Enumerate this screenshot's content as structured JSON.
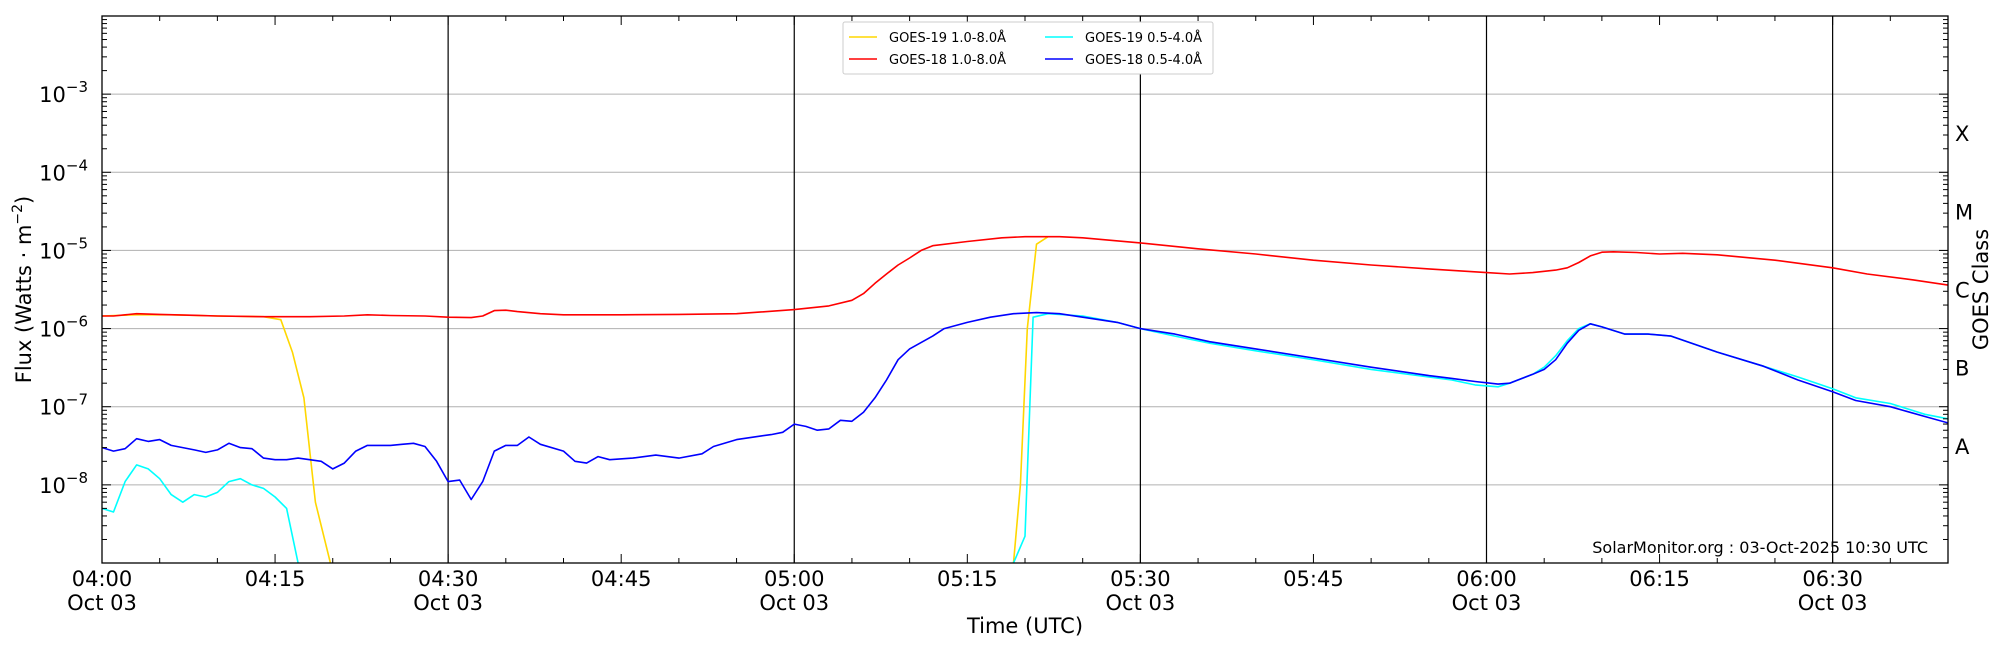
{
  "chart_data": {
    "type": "line",
    "xlabel": "Time (UTC)",
    "ylabel": "Flux (Watts · m",
    "ylabel_sup": "−2",
    "ylabel_close": ")",
    "right_label": "GOES Class",
    "x_range_min": [
      0,
      160
    ],
    "x_ticks": [
      {
        "min": 0,
        "time": "04:00",
        "date": "Oct 03"
      },
      {
        "min": 15,
        "time": "04:15",
        "date": ""
      },
      {
        "min": 30,
        "time": "04:30",
        "date": "Oct 03"
      },
      {
        "min": 45,
        "time": "04:45",
        "date": ""
      },
      {
        "min": 60,
        "time": "05:00",
        "date": "Oct 03"
      },
      {
        "min": 75,
        "time": "05:15",
        "date": ""
      },
      {
        "min": 90,
        "time": "05:30",
        "date": "Oct 03"
      },
      {
        "min": 105,
        "time": "05:45",
        "date": ""
      },
      {
        "min": 120,
        "time": "06:00",
        "date": "Oct 03"
      },
      {
        "min": 135,
        "time": "06:15",
        "date": ""
      },
      {
        "min": 150,
        "time": "06:30",
        "date": "Oct 03"
      }
    ],
    "vertical_lines_min": [
      30,
      60,
      90,
      120,
      150
    ],
    "y_scale": "log",
    "y_range_log10": [
      -9,
      -2
    ],
    "y_ticks": [
      {
        "exp": -8,
        "base": "10",
        "sup": "−8"
      },
      {
        "exp": -7,
        "base": "10",
        "sup": "−7"
      },
      {
        "exp": -6,
        "base": "10",
        "sup": "−6"
      },
      {
        "exp": -5,
        "base": "10",
        "sup": "−5"
      },
      {
        "exp": -4,
        "base": "10",
        "sup": "−4"
      },
      {
        "exp": -3,
        "base": "10",
        "sup": "−3"
      }
    ],
    "goes_classes": [
      {
        "label": "A",
        "log10": -7.5
      },
      {
        "label": "B",
        "log10": -6.5
      },
      {
        "label": "C",
        "log10": -5.5
      },
      {
        "label": "M",
        "log10": -4.5
      },
      {
        "label": "X",
        "log10": -3.5
      }
    ],
    "legend": [
      {
        "name": "GOES-19 1.0-8.0Å",
        "color": "#ffd700"
      },
      {
        "name": "GOES-19 0.5-4.0Å",
        "color": "#00ffff"
      },
      {
        "name": "GOES-18 1.0-8.0Å",
        "color": "#ff0000"
      },
      {
        "name": "GOES-18 0.5-4.0Å",
        "color": "#0000ff"
      }
    ],
    "credit": "SolarMonitor.org : 03-Oct-2025 10:30 UTC",
    "series": [
      {
        "name": "GOES-19 1.0-8.0Å",
        "color": "#ffd700",
        "points": [
          [
            0,
            1.45e-06
          ],
          [
            3,
            1.5e-06
          ],
          [
            6,
            1.5e-06
          ],
          [
            10,
            1.45e-06
          ],
          [
            14,
            1.42e-06
          ],
          [
            15.5,
            1.3e-06
          ],
          [
            16.5,
            5e-07
          ],
          [
            17.5,
            1.3e-07
          ],
          [
            18.5,
            6e-09
          ],
          [
            19.8,
            1e-09
          ]
        ]
      },
      {
        "name": "GOES-19 1.0-8.0Å",
        "color": "#ffd700",
        "points": [
          [
            79,
            1e-09
          ],
          [
            79.6,
            1e-08
          ],
          [
            80.2,
            1e-06
          ],
          [
            81,
            1.2e-05
          ],
          [
            82,
            1.5e-05
          ]
        ]
      },
      {
        "name": "GOES-19 0.5-4.0Å",
        "color": "#00ffff",
        "points": [
          [
            0,
            5e-09
          ],
          [
            1,
            4.5e-09
          ],
          [
            2,
            1.1e-08
          ],
          [
            3,
            1.8e-08
          ],
          [
            4,
            1.6e-08
          ],
          [
            5,
            1.2e-08
          ],
          [
            6,
            7.5e-09
          ],
          [
            7,
            6e-09
          ],
          [
            8,
            7.5e-09
          ],
          [
            9,
            7e-09
          ],
          [
            10,
            8e-09
          ],
          [
            11,
            1.1e-08
          ],
          [
            12,
            1.2e-08
          ],
          [
            13,
            1e-08
          ],
          [
            14,
            9e-09
          ],
          [
            15,
            7e-09
          ],
          [
            16,
            5e-09
          ],
          [
            17,
            1e-09
          ]
        ]
      },
      {
        "name": "GOES-19 0.5-4.0Å",
        "color": "#00ffff",
        "points": [
          [
            79,
            1e-09
          ],
          [
            80,
            2.2e-09
          ],
          [
            80.7,
            1.4e-06
          ],
          [
            82,
            1.55e-06
          ],
          [
            85,
            1.45e-06
          ],
          [
            88,
            1.2e-06
          ],
          [
            90,
            1e-06
          ],
          [
            93,
            8e-07
          ],
          [
            96,
            6.5e-07
          ],
          [
            100,
            5.2e-07
          ],
          [
            105,
            4e-07
          ],
          [
            110,
            3e-07
          ],
          [
            115,
            2.4e-07
          ],
          [
            117,
            2.2e-07
          ],
          [
            119,
            1.9e-07
          ],
          [
            121,
            1.8e-07
          ],
          [
            122,
            2e-07
          ],
          [
            124,
            2.6e-07
          ],
          [
            125,
            3.2e-07
          ],
          [
            126,
            4.5e-07
          ],
          [
            127,
            7e-07
          ],
          [
            128,
            1e-06
          ],
          [
            129,
            1.15e-06
          ],
          [
            130,
            1.05e-06
          ],
          [
            132,
            8.5e-07
          ],
          [
            134,
            8.5e-07
          ],
          [
            136,
            8e-07
          ],
          [
            140,
            5e-07
          ],
          [
            144,
            3.3e-07
          ],
          [
            147,
            2.4e-07
          ],
          [
            150,
            1.7e-07
          ],
          [
            152,
            1.3e-07
          ],
          [
            155,
            1.1e-07
          ],
          [
            158,
            8e-08
          ],
          [
            160,
            7e-08
          ]
        ]
      },
      {
        "name": "GOES-18 1.0-8.0Å",
        "color": "#ff0000",
        "points": [
          [
            0,
            1.45e-06
          ],
          [
            1,
            1.45e-06
          ],
          [
            2,
            1.5e-06
          ],
          [
            3,
            1.55e-06
          ],
          [
            5,
            1.52e-06
          ],
          [
            8,
            1.48e-06
          ],
          [
            10,
            1.45e-06
          ],
          [
            14,
            1.42e-06
          ],
          [
            18,
            1.42e-06
          ],
          [
            21,
            1.45e-06
          ],
          [
            23,
            1.5e-06
          ],
          [
            25,
            1.47e-06
          ],
          [
            28,
            1.45e-06
          ],
          [
            30,
            1.4e-06
          ],
          [
            32,
            1.38e-06
          ],
          [
            33,
            1.45e-06
          ],
          [
            34,
            1.7e-06
          ],
          [
            35,
            1.72e-06
          ],
          [
            36,
            1.65e-06
          ],
          [
            38,
            1.55e-06
          ],
          [
            40,
            1.5e-06
          ],
          [
            45,
            1.5e-06
          ],
          [
            50,
            1.52e-06
          ],
          [
            55,
            1.55e-06
          ],
          [
            60,
            1.75e-06
          ],
          [
            63,
            1.95e-06
          ],
          [
            65,
            2.3e-06
          ],
          [
            66,
            2.8e-06
          ],
          [
            67,
            3.8e-06
          ],
          [
            68,
            5e-06
          ],
          [
            69,
            6.5e-06
          ],
          [
            70,
            8e-06
          ],
          [
            71,
            1e-05
          ],
          [
            72,
            1.15e-05
          ],
          [
            75,
            1.3e-05
          ],
          [
            78,
            1.45e-05
          ],
          [
            80,
            1.5e-05
          ],
          [
            83,
            1.5e-05
          ],
          [
            85,
            1.45e-05
          ],
          [
            90,
            1.25e-05
          ],
          [
            95,
            1.05e-05
          ],
          [
            100,
            9e-06
          ],
          [
            105,
            7.5e-06
          ],
          [
            110,
            6.5e-06
          ],
          [
            115,
            5.8e-06
          ],
          [
            120,
            5.2e-06
          ],
          [
            122,
            5e-06
          ],
          [
            124,
            5.2e-06
          ],
          [
            126,
            5.6e-06
          ],
          [
            127,
            6e-06
          ],
          [
            128,
            7e-06
          ],
          [
            129,
            8.5e-06
          ],
          [
            130,
            9.5e-06
          ],
          [
            131,
            9.6e-06
          ],
          [
            133,
            9.4e-06
          ],
          [
            135,
            9e-06
          ],
          [
            137,
            9.2e-06
          ],
          [
            140,
            8.8e-06
          ],
          [
            145,
            7.5e-06
          ],
          [
            150,
            6e-06
          ],
          [
            153,
            5e-06
          ],
          [
            157,
            4.2e-06
          ],
          [
            160,
            3.6e-06
          ]
        ]
      },
      {
        "name": "GOES-18 0.5-4.0Å",
        "color": "#0000ff",
        "points": [
          [
            0,
            3e-08
          ],
          [
            1,
            2.7e-08
          ],
          [
            2,
            2.9e-08
          ],
          [
            3,
            3.9e-08
          ],
          [
            4,
            3.6e-08
          ],
          [
            5,
            3.8e-08
          ],
          [
            6,
            3.2e-08
          ],
          [
            8,
            2.8e-08
          ],
          [
            9,
            2.6e-08
          ],
          [
            10,
            2.8e-08
          ],
          [
            11,
            3.4e-08
          ],
          [
            12,
            3e-08
          ],
          [
            13,
            2.9e-08
          ],
          [
            14,
            2.2e-08
          ],
          [
            15,
            2.1e-08
          ],
          [
            16,
            2.1e-08
          ],
          [
            17,
            2.2e-08
          ],
          [
            18,
            2.1e-08
          ],
          [
            19,
            2e-08
          ],
          [
            20,
            1.6e-08
          ],
          [
            21,
            1.9e-08
          ],
          [
            22,
            2.7e-08
          ],
          [
            23,
            3.2e-08
          ],
          [
            25,
            3.2e-08
          ],
          [
            26,
            3.3e-08
          ],
          [
            27,
            3.4e-08
          ],
          [
            28,
            3.1e-08
          ],
          [
            29,
            2e-08
          ],
          [
            30,
            1.1e-08
          ],
          [
            31,
            1.15e-08
          ],
          [
            32,
            6.5e-09
          ],
          [
            33,
            1.1e-08
          ],
          [
            34,
            2.7e-08
          ],
          [
            35,
            3.2e-08
          ],
          [
            36,
            3.2e-08
          ],
          [
            37,
            4.1e-08
          ],
          [
            38,
            3.3e-08
          ],
          [
            40,
            2.7e-08
          ],
          [
            41,
            2e-08
          ],
          [
            42,
            1.9e-08
          ],
          [
            43,
            2.3e-08
          ],
          [
            44,
            2.1e-08
          ],
          [
            46,
            2.2e-08
          ],
          [
            48,
            2.4e-08
          ],
          [
            50,
            2.2e-08
          ],
          [
            52,
            2.5e-08
          ],
          [
            53,
            3.1e-08
          ],
          [
            55,
            3.8e-08
          ],
          [
            57,
            4.2e-08
          ],
          [
            58,
            4.4e-08
          ],
          [
            59,
            4.7e-08
          ],
          [
            60,
            6e-08
          ],
          [
            61,
            5.6e-08
          ],
          [
            62,
            5e-08
          ],
          [
            63,
            5.2e-08
          ],
          [
            64,
            6.7e-08
          ],
          [
            65,
            6.5e-08
          ],
          [
            66,
            8.5e-08
          ],
          [
            67,
            1.3e-07
          ],
          [
            68,
            2.2e-07
          ],
          [
            69,
            4e-07
          ],
          [
            70,
            5.5e-07
          ],
          [
            72,
            8e-07
          ],
          [
            73,
            1e-06
          ],
          [
            75,
            1.2e-06
          ],
          [
            77,
            1.4e-06
          ],
          [
            79,
            1.55e-06
          ],
          [
            81,
            1.6e-06
          ],
          [
            83,
            1.55e-06
          ],
          [
            85,
            1.4e-06
          ],
          [
            88,
            1.2e-06
          ],
          [
            90,
            1e-06
          ],
          [
            93,
            8.5e-07
          ],
          [
            96,
            6.8e-07
          ],
          [
            100,
            5.5e-07
          ],
          [
            105,
            4.2e-07
          ],
          [
            110,
            3.2e-07
          ],
          [
            115,
            2.5e-07
          ],
          [
            117,
            2.3e-07
          ],
          [
            119,
            2.1e-07
          ],
          [
            121,
            1.95e-07
          ],
          [
            122,
            2e-07
          ],
          [
            124,
            2.6e-07
          ],
          [
            125,
            3e-07
          ],
          [
            126,
            4e-07
          ],
          [
            127,
            6.5e-07
          ],
          [
            128,
            9.5e-07
          ],
          [
            129,
            1.15e-06
          ],
          [
            130,
            1.05e-06
          ],
          [
            132,
            8.5e-07
          ],
          [
            134,
            8.5e-07
          ],
          [
            136,
            8e-07
          ],
          [
            140,
            5e-07
          ],
          [
            144,
            3.3e-07
          ],
          [
            147,
            2.2e-07
          ],
          [
            150,
            1.55e-07
          ],
          [
            152,
            1.2e-07
          ],
          [
            155,
            1e-07
          ],
          [
            158,
            7.5e-08
          ],
          [
            160,
            6.2e-08
          ]
        ]
      }
    ]
  }
}
